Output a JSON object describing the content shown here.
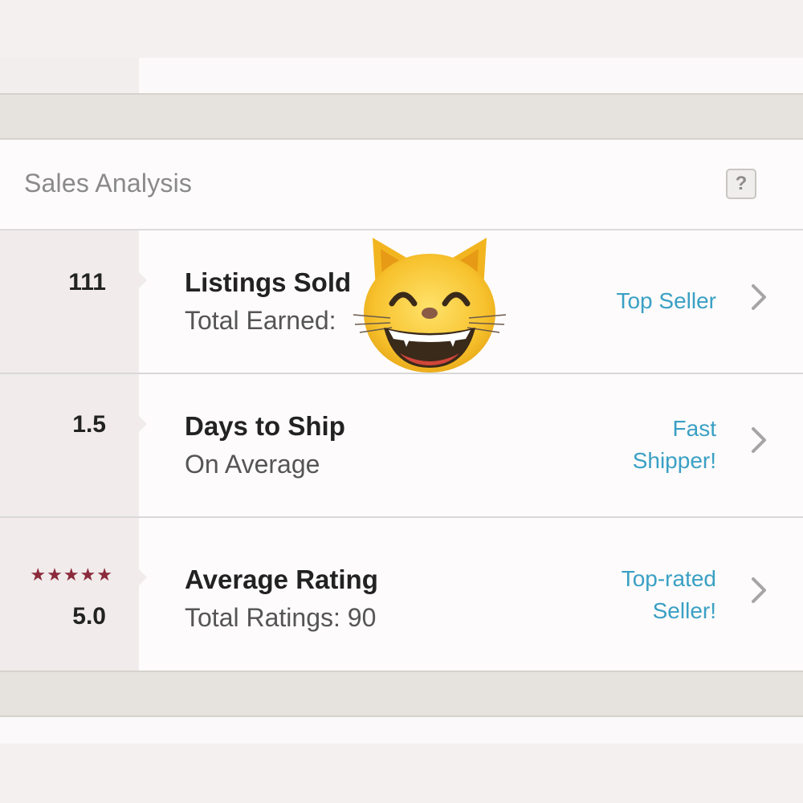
{
  "header": {
    "title": "Sales Analysis",
    "help_label": "?"
  },
  "rows": [
    {
      "stat": "111",
      "title": "Listings Sold",
      "subtitle": "Total Earned:",
      "badge": "Top Seller"
    },
    {
      "stat": "1.5",
      "title": "Days to Ship",
      "subtitle": "On Average",
      "badge_line1": "Fast",
      "badge_line2": "Shipper!"
    },
    {
      "stars": "★★★★★",
      "stars_count": 5,
      "stat": "5.0",
      "title": "Average Rating",
      "subtitle": "Total Ratings: 90",
      "badge_line1": "Top-rated",
      "badge_line2": "Seller!"
    }
  ],
  "overlay": {
    "icon": "grinning-cat-emoji-icon"
  },
  "colors": {
    "accent_link": "#3aa0c5",
    "star": "#8a2a3a",
    "stat_panel": "#f1ebeb"
  }
}
